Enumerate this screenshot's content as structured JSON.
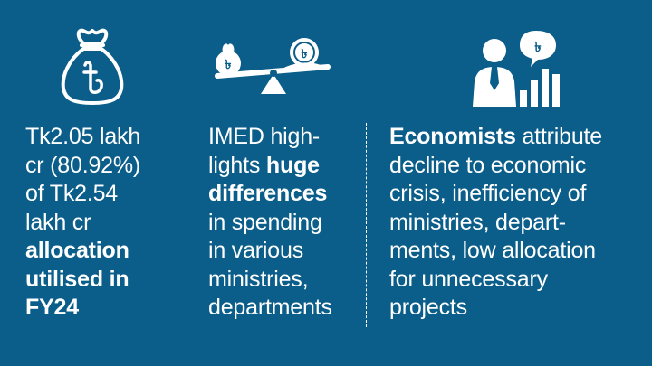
{
  "colors": {
    "background": "#0b5e8a",
    "foreground": "#ffffff"
  },
  "columns": [
    {
      "icon": "money-bag-taka-icon",
      "lines": [
        [
          {
            "t": "Tk2.05 lakh",
            "b": false
          }
        ],
        [
          {
            "t": "cr (80.92%)",
            "b": false
          }
        ],
        [
          {
            "t": "of Tk2.54",
            "b": false
          }
        ],
        [
          {
            "t": "lakh cr",
            "b": false
          }
        ],
        [
          {
            "t": "allocation",
            "b": true
          }
        ],
        [
          {
            "t": "utilised in",
            "b": true
          }
        ],
        [
          {
            "t": "FY24",
            "b": true
          }
        ]
      ]
    },
    {
      "icon": "balance-scale-taka-icon",
      "lines": [
        [
          {
            "t": "IMED high-",
            "b": false
          }
        ],
        [
          {
            "t": "lights ",
            "b": false
          },
          {
            "t": "huge",
            "b": true
          }
        ],
        [
          {
            "t": "differences",
            "b": true
          }
        ],
        [
          {
            "t": "in spending",
            "b": false
          }
        ],
        [
          {
            "t": "in various",
            "b": false
          }
        ],
        [
          {
            "t": "ministries,",
            "b": false
          }
        ],
        [
          {
            "t": "departments",
            "b": false
          }
        ]
      ]
    },
    {
      "icon": "economist-chart-icon",
      "lines": [
        [
          {
            "t": "Economists",
            "b": true
          },
          {
            "t": " attribute",
            "b": false
          }
        ],
        [
          {
            "t": "decline to economic",
            "b": false
          }
        ],
        [
          {
            "t": "crisis, inefficiency of",
            "b": false
          }
        ],
        [
          {
            "t": "ministries, depart-",
            "b": false
          }
        ],
        [
          {
            "t": "ments, low allocation",
            "b": false
          }
        ],
        [
          {
            "t": "for unnecessary",
            "b": false
          }
        ],
        [
          {
            "t": "projects",
            "b": false
          }
        ]
      ]
    }
  ]
}
